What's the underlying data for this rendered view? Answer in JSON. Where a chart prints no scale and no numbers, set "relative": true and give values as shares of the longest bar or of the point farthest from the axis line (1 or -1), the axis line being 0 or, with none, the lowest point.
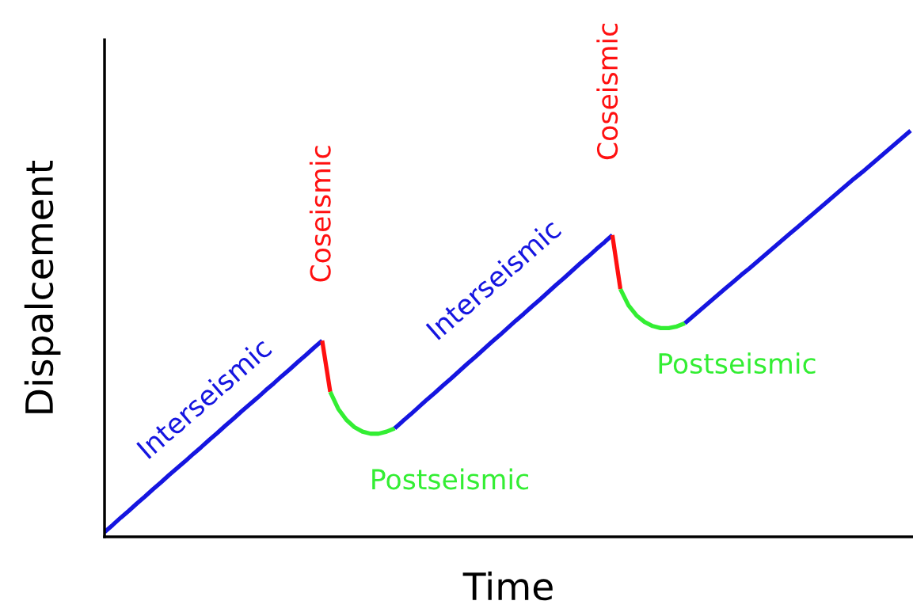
{
  "chart_data": {
    "type": "line",
    "relative": true,
    "xlabel": "Time",
    "ylabel": "Dispalcement",
    "categories": [
      null,
      null,
      null,
      null,
      null,
      null,
      null,
      null,
      null,
      null,
      null,
      null,
      null,
      null,
      null,
      null,
      null,
      null,
      null,
      null,
      null,
      null,
      null,
      null,
      null,
      null,
      null,
      null,
      null,
      null,
      null,
      null,
      null,
      null,
      null,
      null,
      null,
      null,
      null,
      null,
      null,
      null,
      null,
      null,
      null,
      null,
      null,
      null,
      null,
      null,
      null,
      null,
      null,
      null,
      null,
      null,
      null,
      null,
      null,
      null,
      null,
      null,
      null,
      null,
      null,
      null,
      null,
      null,
      null,
      null,
      null,
      null,
      null,
      null,
      null,
      null,
      null,
      null,
      null,
      null,
      null,
      null,
      null,
      null,
      null,
      null,
      null,
      null,
      null,
      null,
      null,
      null,
      null,
      null,
      null,
      null,
      null,
      null,
      null,
      null,
      null
    ],
    "series": [
      {
        "color": "#1515e0",
        "values": [
          0.012,
          0.029,
          0.047,
          0.064,
          0.082,
          0.099,
          0.117,
          0.134,
          0.152,
          0.169,
          0.186,
          0.204,
          0.221,
          0.239,
          0.256,
          0.274,
          0.291,
          0.309,
          0.326,
          0.343,
          0.361,
          0.378,
          0.396,
          0.413,
          0.431,
          0.448,
          0.466,
          0.483,
          null,
          null,
          null,
          null,
          null,
          null,
          null,
          null,
          null,
          null,
          null,
          null,
          null,
          null,
          null,
          null,
          null,
          null,
          null,
          null,
          null,
          null,
          null,
          null,
          null,
          null,
          null,
          null,
          null,
          null,
          null,
          null,
          null,
          null,
          null,
          null,
          null,
          null,
          null,
          null,
          null,
          null,
          null,
          null,
          null,
          null,
          null,
          null,
          null,
          null,
          null,
          null,
          null,
          null,
          null,
          null,
          null,
          null,
          null,
          null,
          null,
          null,
          null,
          null,
          null,
          null,
          null,
          null,
          null,
          null,
          null,
          null,
          null
        ]
      },
      {
        "color": "#ff1010",
        "values": [
          null,
          null,
          null,
          null,
          null,
          null,
          null,
          null,
          null,
          null,
          null,
          null,
          null,
          null,
          null,
          null,
          null,
          null,
          null,
          null,
          null,
          null,
          null,
          null,
          null,
          null,
          null,
          0.483,
          0.357,
          null,
          null,
          null,
          null,
          null,
          null,
          null,
          null,
          null,
          null,
          null,
          null,
          null,
          null,
          null,
          null,
          null,
          null,
          null,
          null,
          null,
          null,
          null,
          null,
          null,
          null,
          null,
          null,
          null,
          null,
          null,
          null,
          null,
          null,
          null,
          null,
          null,
          null,
          null,
          null,
          null,
          null,
          null,
          null,
          null,
          null,
          null,
          null,
          null,
          null,
          null,
          null,
          null,
          null,
          null,
          null,
          null,
          null,
          null,
          null,
          null,
          null,
          null,
          null,
          null,
          null,
          null,
          null,
          null,
          null,
          null,
          null
        ]
      },
      {
        "color": "#33ee33",
        "values": [
          null,
          null,
          null,
          null,
          null,
          null,
          null,
          null,
          null,
          null,
          null,
          null,
          null,
          null,
          null,
          null,
          null,
          null,
          null,
          null,
          null,
          null,
          null,
          null,
          null,
          null,
          null,
          null,
          0.357,
          0.315,
          0.288,
          0.27,
          0.259,
          0.254,
          0.254,
          0.259,
          0.267,
          null,
          null,
          null,
          null,
          null,
          null,
          null,
          null,
          null,
          null,
          null,
          null,
          null,
          null,
          null,
          null,
          null,
          null,
          null,
          null,
          null,
          null,
          null,
          null,
          null,
          null,
          null,
          null,
          null,
          null,
          null,
          null,
          null,
          null,
          null,
          null,
          null,
          null,
          null,
          null,
          null,
          null,
          null,
          null,
          null,
          null,
          null,
          null,
          null,
          null,
          null,
          null,
          null,
          null,
          null,
          null,
          null,
          null,
          null,
          null,
          null,
          null,
          null,
          null
        ]
      },
      {
        "color": "#1515e0",
        "values": [
          null,
          null,
          null,
          null,
          null,
          null,
          null,
          null,
          null,
          null,
          null,
          null,
          null,
          null,
          null,
          null,
          null,
          null,
          null,
          null,
          null,
          null,
          null,
          null,
          null,
          null,
          null,
          null,
          null,
          null,
          null,
          null,
          null,
          null,
          null,
          null,
          0.267,
          0.285,
          0.302,
          0.32,
          0.338,
          0.355,
          0.373,
          0.39,
          0.408,
          0.426,
          0.443,
          0.461,
          0.479,
          0.496,
          0.514,
          0.532,
          0.549,
          0.567,
          0.584,
          0.602,
          0.62,
          0.637,
          0.655,
          0.673,
          0.69,
          0.708,
          0.725,
          0.743,
          null,
          null,
          null,
          null,
          null,
          null,
          null,
          null,
          null,
          null,
          null,
          null,
          null,
          null,
          null,
          null,
          null,
          null,
          null,
          null,
          null,
          null,
          null,
          null,
          null,
          null,
          null,
          null,
          null,
          null,
          null,
          null,
          null,
          null,
          null,
          null,
          null
        ]
      },
      {
        "color": "#ff1010",
        "values": [
          null,
          null,
          null,
          null,
          null,
          null,
          null,
          null,
          null,
          null,
          null,
          null,
          null,
          null,
          null,
          null,
          null,
          null,
          null,
          null,
          null,
          null,
          null,
          null,
          null,
          null,
          null,
          null,
          null,
          null,
          null,
          null,
          null,
          null,
          null,
          null,
          null,
          null,
          null,
          null,
          null,
          null,
          null,
          null,
          null,
          null,
          null,
          null,
          null,
          null,
          null,
          null,
          null,
          null,
          null,
          null,
          null,
          null,
          null,
          null,
          null,
          null,
          null,
          0.743,
          0.61,
          null,
          null,
          null,
          null,
          null,
          null,
          null,
          null,
          null,
          null,
          null,
          null,
          null,
          null,
          null,
          null,
          null,
          null,
          null,
          null,
          null,
          null,
          null,
          null,
          null,
          null,
          null,
          null,
          null,
          null,
          null,
          null,
          null,
          null,
          null,
          null
        ]
      },
      {
        "color": "#33ee33",
        "values": [
          null,
          null,
          null,
          null,
          null,
          null,
          null,
          null,
          null,
          null,
          null,
          null,
          null,
          null,
          null,
          null,
          null,
          null,
          null,
          null,
          null,
          null,
          null,
          null,
          null,
          null,
          null,
          null,
          null,
          null,
          null,
          null,
          null,
          null,
          null,
          null,
          null,
          null,
          null,
          null,
          null,
          null,
          null,
          null,
          null,
          null,
          null,
          null,
          null,
          null,
          null,
          null,
          null,
          null,
          null,
          null,
          null,
          null,
          null,
          null,
          null,
          null,
          null,
          null,
          0.61,
          0.57,
          0.545,
          0.529,
          0.519,
          0.514,
          0.514,
          0.518,
          0.526,
          null,
          null,
          null,
          null,
          null,
          null,
          null,
          null,
          null,
          null,
          null,
          null,
          null,
          null,
          null,
          null,
          null,
          null,
          null,
          null,
          null,
          null,
          null,
          null,
          null,
          null,
          null,
          null
        ]
      },
      {
        "color": "#1515e0",
        "values": [
          null,
          null,
          null,
          null,
          null,
          null,
          null,
          null,
          null,
          null,
          null,
          null,
          null,
          null,
          null,
          null,
          null,
          null,
          null,
          null,
          null,
          null,
          null,
          null,
          null,
          null,
          null,
          null,
          null,
          null,
          null,
          null,
          null,
          null,
          null,
          null,
          null,
          null,
          null,
          null,
          null,
          null,
          null,
          null,
          null,
          null,
          null,
          null,
          null,
          null,
          null,
          null,
          null,
          null,
          null,
          null,
          null,
          null,
          null,
          null,
          null,
          null,
          null,
          null,
          null,
          null,
          null,
          null,
          null,
          null,
          null,
          null,
          0.526,
          0.543,
          0.56,
          0.577,
          0.594,
          0.611,
          0.628,
          0.645,
          0.661,
          0.678,
          0.695,
          0.712,
          0.729,
          0.746,
          0.763,
          0.78,
          0.797,
          0.814,
          0.831,
          0.848,
          0.865,
          0.882,
          0.898,
          0.915,
          0.932,
          0.949,
          0.966,
          0.983,
          1.0
        ]
      }
    ],
    "annotations": [
      "Interseismic",
      "Coseismic",
      "Interseismic",
      "Coseismic",
      "Postseismic",
      "Postseismic"
    ]
  }
}
